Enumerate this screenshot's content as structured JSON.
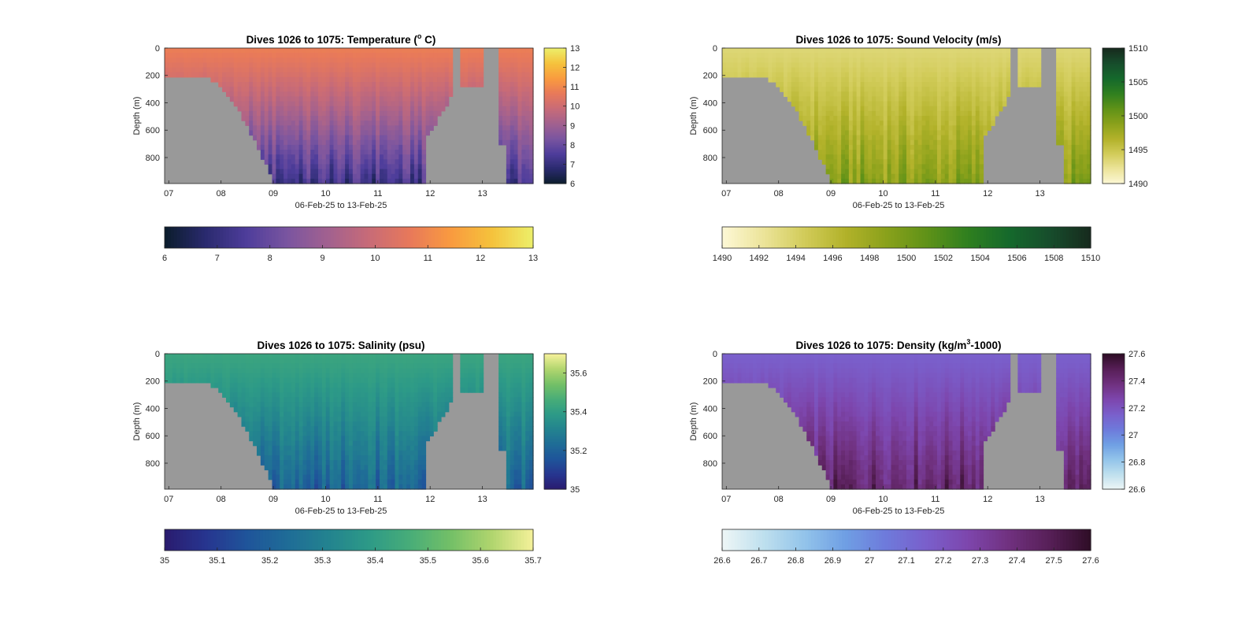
{
  "figure": {
    "background": "#ffffff",
    "land_color": "#999999"
  },
  "chart_data": [
    {
      "type": "heatmap",
      "variable": "temperature",
      "title": "Dives 1026 to 1075: Temperature (",
      "title_sup": "o",
      "title_tail": " C)",
      "xlabel": "06-Feb-25 to 13-Feb-25",
      "ylabel": "Depth (m)",
      "xlim": [
        6.92,
        13.97
      ],
      "xticks": [
        "07",
        "08",
        "09",
        "10",
        "11",
        "12",
        "13"
      ],
      "xtick_values": [
        7,
        8,
        9,
        10,
        11,
        12,
        13
      ],
      "ylim": [
        990,
        0
      ],
      "yticks": [
        "0",
        "200",
        "400",
        "600",
        "800"
      ],
      "ytick_values": [
        0,
        200,
        400,
        600,
        800
      ],
      "clim": [
        6,
        13
      ],
      "colorbar_ticks": [
        "6",
        "7",
        "8",
        "9",
        "10",
        "11",
        "12",
        "13"
      ],
      "horizontal_colorbar_ticks": [
        "6",
        "7",
        "8",
        "9",
        "10",
        "11",
        "12",
        "13"
      ],
      "colormap": [
        "#0b1d2c",
        "#2a2a6e",
        "#4e3d9b",
        "#7a55a0",
        "#a2618f",
        "#c86b77",
        "#e8795a",
        "#f99b3f",
        "#f5c23c",
        "#ecef6a"
      ],
      "surface_value": 10.8,
      "deep_value": 7.2
    },
    {
      "type": "heatmap",
      "variable": "sound_velocity",
      "title": "Dives 1026 to 1075: Sound Velocity (m/s)",
      "xlabel": "06-Feb-25 to 13-Feb-25",
      "ylabel": "Depth (m)",
      "xlim": [
        6.92,
        13.97
      ],
      "xticks": [
        "07",
        "08",
        "09",
        "10",
        "11",
        "12",
        "13"
      ],
      "xtick_values": [
        7,
        8,
        9,
        10,
        11,
        12,
        13
      ],
      "ylim": [
        990,
        0
      ],
      "yticks": [
        "0",
        "200",
        "400",
        "600",
        "800"
      ],
      "ytick_values": [
        0,
        200,
        400,
        600,
        800
      ],
      "clim": [
        1490,
        1510
      ],
      "colorbar_ticks": [
        "1490",
        "1495",
        "1500",
        "1505",
        "1510"
      ],
      "colorbar_tick_values": [
        1490,
        1495,
        1500,
        1505,
        1510
      ],
      "horizontal_colorbar_ticks": [
        "1490",
        "1492",
        "1494",
        "1496",
        "1498",
        "1500",
        "1502",
        "1504",
        "1506",
        "1508",
        "1510"
      ],
      "colormap": [
        "#fdf8d6",
        "#ece49a",
        "#d2cc5a",
        "#b2b22a",
        "#8aa11b",
        "#5f9218",
        "#2f7f1f",
        "#15692c",
        "#174d2c",
        "#172a1d"
      ],
      "surface_value": 1493.5,
      "deep_value": 1499
    },
    {
      "type": "heatmap",
      "variable": "salinity",
      "title": "Dives 1026 to 1075: Salinity (psu)",
      "xlabel": "06-Feb-25 to 13-Feb-25",
      "ylabel": "Depth (m)",
      "xlim": [
        6.92,
        13.97
      ],
      "xticks": [
        "07",
        "08",
        "09",
        "10",
        "11",
        "12",
        "13"
      ],
      "xtick_values": [
        7,
        8,
        9,
        10,
        11,
        12,
        13
      ],
      "ylim": [
        990,
        0
      ],
      "yticks": [
        "0",
        "200",
        "400",
        "600",
        "800"
      ],
      "ytick_values": [
        0,
        200,
        400,
        600,
        800
      ],
      "clim": [
        35,
        35.7
      ],
      "colorbar_ticks": [
        "35",
        "35.2",
        "35.4",
        "35.6"
      ],
      "colorbar_tick_values": [
        35,
        35.2,
        35.4,
        35.6
      ],
      "horizontal_colorbar_ticks": [
        "35",
        "35.1",
        "35.2",
        "35.3",
        "35.4",
        "35.5",
        "35.6",
        "35.7"
      ],
      "colormap": [
        "#2a1b6e",
        "#27358f",
        "#1f549a",
        "#1f6c97",
        "#23838f",
        "#2d9a87",
        "#48ad78",
        "#74c067",
        "#b1d56e",
        "#f5f19a"
      ],
      "surface_value": 35.43,
      "deep_value": 35.2
    },
    {
      "type": "heatmap",
      "variable": "density",
      "title": "Dives 1026 to 1075: Density (kg/m",
      "title_sup": "3",
      "title_tail": "-1000)",
      "xlabel": "06-Feb-25 to 13-Feb-25",
      "ylabel": "Depth (m)",
      "xlim": [
        6.92,
        13.97
      ],
      "xticks": [
        "07",
        "08",
        "09",
        "10",
        "11",
        "12",
        "13"
      ],
      "xtick_values": [
        7,
        8,
        9,
        10,
        11,
        12,
        13
      ],
      "ylim": [
        990,
        0
      ],
      "yticks": [
        "0",
        "200",
        "400",
        "600",
        "800"
      ],
      "ytick_values": [
        0,
        200,
        400,
        600,
        800
      ],
      "clim": [
        26.6,
        27.6
      ],
      "colorbar_ticks": [
        "26.6",
        "26.8",
        "27",
        "27.2",
        "27.4",
        "27.6"
      ],
      "colorbar_tick_values": [
        26.6,
        26.8,
        27.0,
        27.2,
        27.4,
        27.6
      ],
      "horizontal_colorbar_ticks": [
        "26.6",
        "26.7",
        "26.8",
        "26.9",
        "27",
        "27.1",
        "27.2",
        "27.3",
        "27.4",
        "27.5",
        "27.6"
      ],
      "colormap": [
        "#eef6f6",
        "#bfe0ee",
        "#93c4ea",
        "#6f9fe4",
        "#6e7adb",
        "#7a5fcb",
        "#7d46ad",
        "#70317f",
        "#571f57",
        "#2e0d26"
      ],
      "surface_value": 27.15,
      "deep_value": 27.45
    }
  ]
}
